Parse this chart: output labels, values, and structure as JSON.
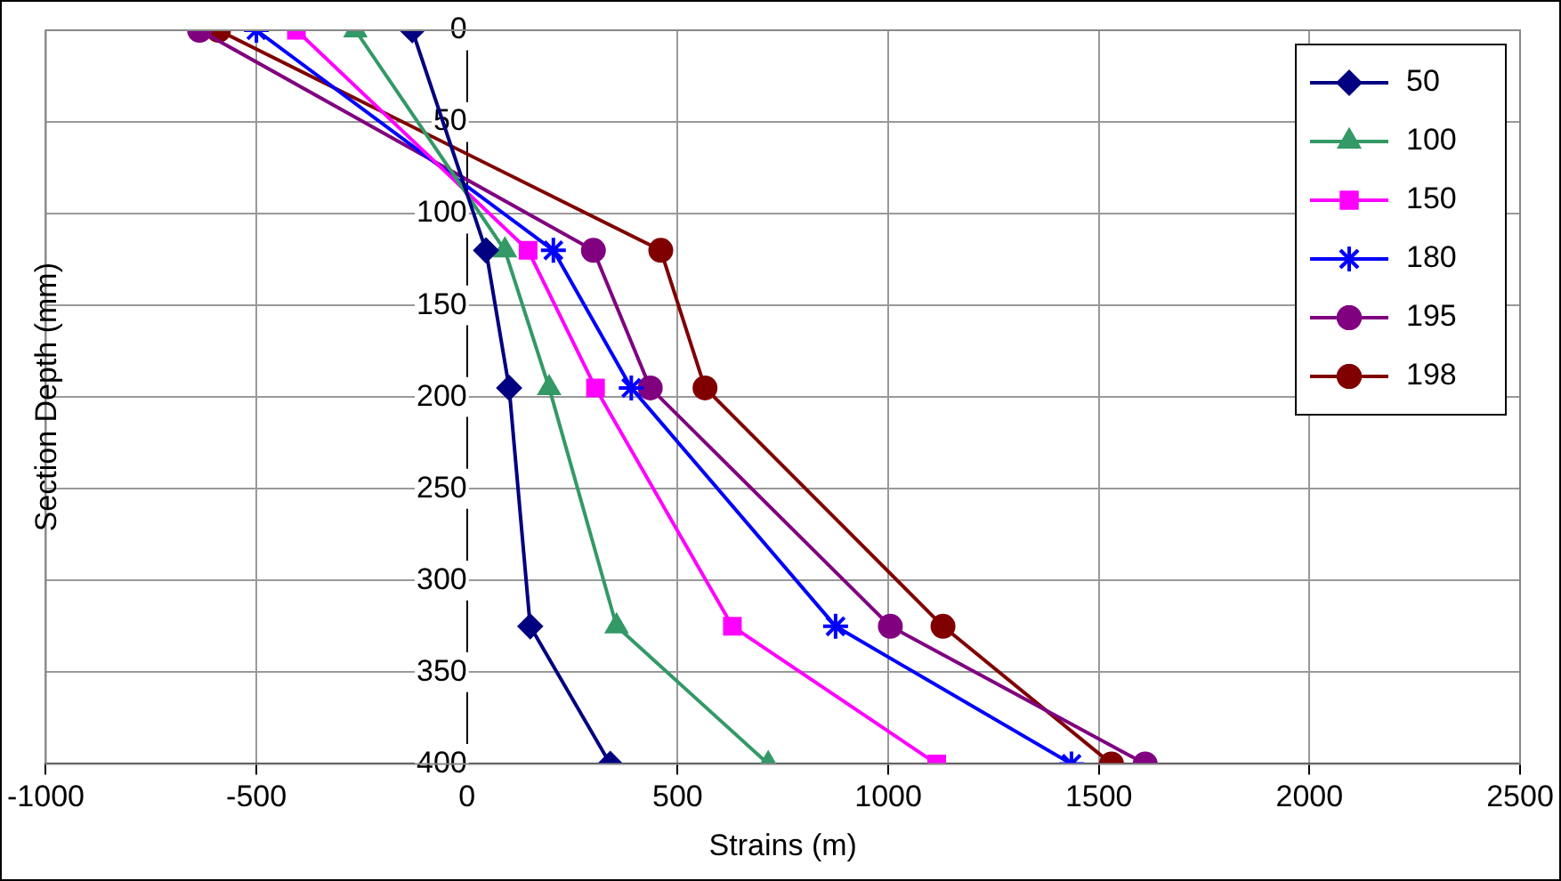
{
  "chart_data": {
    "type": "line",
    "xlabel": "Strains (m)",
    "ylabel": "Section Depth (mm)",
    "xlim": [
      -1000,
      2500
    ],
    "xticks": [
      -1000,
      -500,
      0,
      500,
      1000,
      1500,
      2000,
      2500
    ],
    "ylim": [
      400,
      0
    ],
    "yticks": [
      0,
      50,
      100,
      150,
      200,
      250,
      300,
      350,
      400
    ],
    "grid": true,
    "legend": "top right",
    "line_style": "solid",
    "series": [
      {
        "name": "50",
        "color": "#000080",
        "marker": "diamond",
        "x": [
          -130,
          45,
          100,
          150,
          340
        ],
        "values": [
          0,
          120,
          195,
          325,
          400
        ]
      },
      {
        "name": "100",
        "color": "#339966",
        "marker": "triangle",
        "x": [
          -265,
          90,
          195,
          355,
          715
        ],
        "values": [
          0,
          120,
          195,
          325,
          400
        ]
      },
      {
        "name": "150",
        "color": "#ff00ff",
        "marker": "square",
        "x": [
          -405,
          145,
          305,
          630,
          1115
        ],
        "values": [
          0,
          120,
          195,
          325,
          400
        ]
      },
      {
        "name": "180",
        "color": "#0000ff",
        "marker": "cross",
        "x": [
          -500,
          205,
          390,
          875,
          1435
        ],
        "values": [
          0,
          120,
          195,
          325,
          400
        ]
      },
      {
        "name": "195",
        "color": "#800080",
        "marker": "circle",
        "x": [
          -635,
          300,
          435,
          1005,
          1610
        ],
        "values": [
          0,
          120,
          195,
          325,
          400
        ]
      },
      {
        "name": "198",
        "color": "#800000",
        "marker": "circle",
        "x": [
          -590,
          460,
          565,
          1130,
          1530
        ],
        "values": [
          0,
          120,
          195,
          325,
          400
        ]
      }
    ]
  }
}
